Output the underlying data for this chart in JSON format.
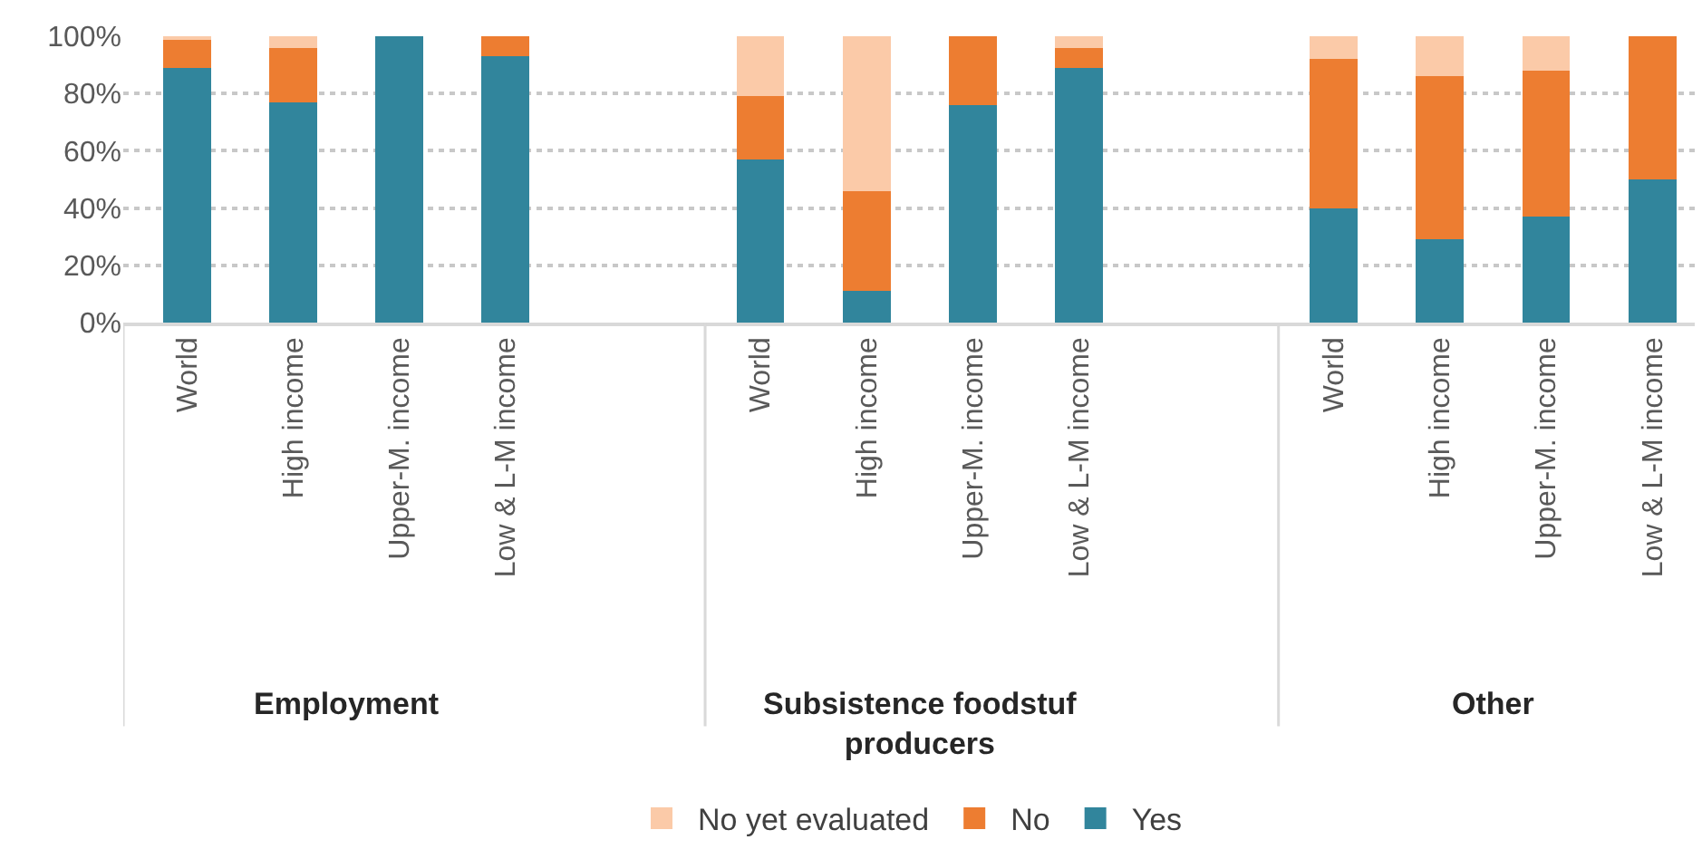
{
  "chart_data": {
    "type": "bar",
    "stacked": true,
    "grid": "y",
    "legend": "bottom",
    "categories": [
      "World",
      "High income",
      "Upper-M. income",
      "Low & L-M income",
      "World",
      "High income",
      "Upper-M. income",
      "Low & L-M income",
      "World",
      "High income",
      "Upper-M. income",
      "Low & L-M income"
    ],
    "series": [
      {
        "name": "Yes",
        "color": "#31859c",
        "values": [
          89,
          77,
          100,
          93,
          57,
          11,
          76,
          89,
          40,
          29,
          37,
          50
        ]
      },
      {
        "name": "No",
        "color": "#ed7d31",
        "values": [
          10,
          19,
          0,
          7,
          22,
          35,
          24,
          7,
          52,
          57,
          51,
          50
        ]
      },
      {
        "name": "No yet evaluated",
        "color": "#fbcaa8",
        "values": [
          1,
          4,
          0,
          0,
          21,
          54,
          0,
          4,
          8,
          14,
          12,
          0
        ]
      }
    ],
    "ylim": [
      0,
      100
    ],
    "yticks": [
      {
        "value": 0,
        "label": "0%"
      },
      {
        "value": 20,
        "label": "20%"
      },
      {
        "value": 40,
        "label": "40%"
      },
      {
        "value": 60,
        "label": "60%"
      },
      {
        "value": 80,
        "label": "80%"
      },
      {
        "value": 100,
        "label": "100%"
      }
    ],
    "annotations": [
      "Employment",
      "Subsistence foodstuf producers",
      "Other"
    ]
  }
}
